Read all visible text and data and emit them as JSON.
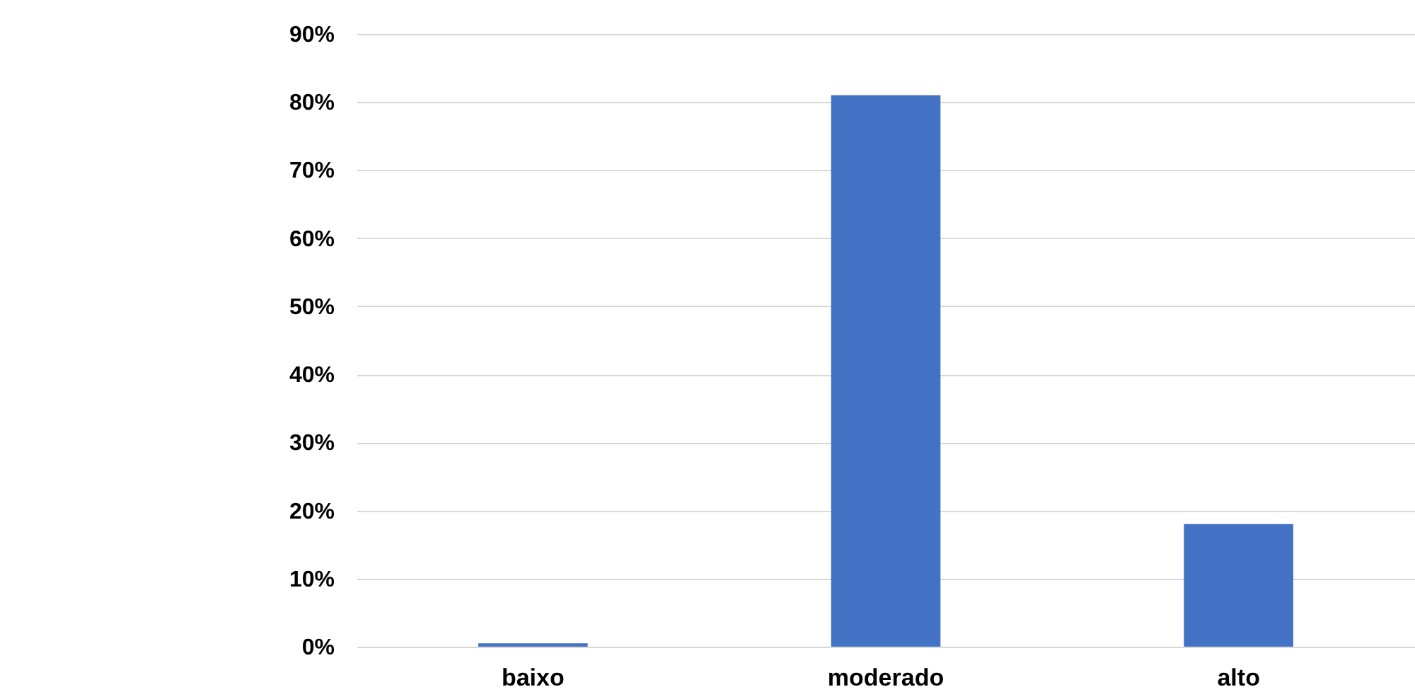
{
  "chart_data": {
    "type": "bar",
    "categories": [
      "baixo",
      "moderado",
      "alto"
    ],
    "values": [
      0.5,
      81,
      18
    ],
    "color": "#4472c4",
    "ylim": [
      0,
      90
    ],
    "yticks": [
      {
        "value": 0,
        "label": "0%"
      },
      {
        "value": 10,
        "label": "10%"
      },
      {
        "value": 20,
        "label": "20%"
      },
      {
        "value": 30,
        "label": "30%"
      },
      {
        "value": 40,
        "label": "40%"
      },
      {
        "value": 50,
        "label": "50%"
      },
      {
        "value": 60,
        "label": "60%"
      },
      {
        "value": 70,
        "label": "70%"
      },
      {
        "value": 80,
        "label": "80%"
      },
      {
        "value": 90,
        "label": "90%"
      }
    ],
    "grid": "y"
  }
}
